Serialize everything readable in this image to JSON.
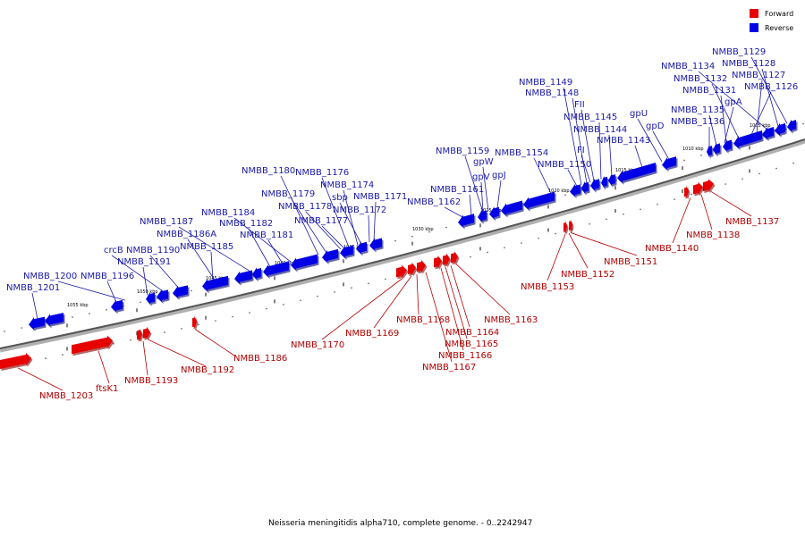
{
  "legend": {
    "forward_label": "Forward",
    "reverse_label": "Reverse",
    "forward_color": "#e60000",
    "reverse_color": "#0000e6"
  },
  "caption": "Neisseria meningitidis alpha710, complete genome. - 0..2242947",
  "ticks": [
    "1005 kbp",
    "1010 kbp",
    "1015 kbp",
    "1020 kbp",
    "1025 kbp",
    "1030 kbp",
    "1035 kbp",
    "1040 kbp",
    "1045 kbp",
    "1050 kbp",
    "1055 kbp"
  ],
  "reverse_labels": [
    "NMBB_1129",
    "NMBB_1128",
    "NMBB_1134",
    "NMBB_1127",
    "NMBB_1132",
    "NMBB_1126",
    "NMBB_1131",
    "gpA",
    "NMBB_1135",
    "NMBB_1136",
    "NMBB_1149",
    "NMBB_1148",
    "FII",
    "gpU",
    "NMBB_1145",
    "gpD",
    "NMBB_1144",
    "NMBB_1143",
    "FI",
    "NMBB_1159",
    "NMBB_1154",
    "NMBB_1150",
    "gpW",
    "gpV",
    "gpJ",
    "NMBB_1161",
    "NMBB_1162",
    "NMBB_1180",
    "NMBB_1176",
    "NMBB_1174",
    "NMBB_1179",
    "sbp",
    "NMBB_1171",
    "NMBB_1178",
    "NMBB_1172",
    "NMBB_1184",
    "NMBB_1177",
    "NMBB_1187",
    "NMBB_1182",
    "NMBB_1186A",
    "NMBB_1181",
    "NMBB_1185",
    "crcB",
    "NMBB_1190",
    "NMBB_1191",
    "NMBB_1200",
    "NMBB_1196",
    "NMBB_1201"
  ],
  "forward_labels": [
    "NMBB_1137",
    "NMBB_1138",
    "NMBB_1140",
    "NMBB_1151",
    "NMBB_1152",
    "NMBB_1153",
    "NMBB_1163",
    "NMBB_1168",
    "NMBB_1164",
    "NMBB_1169",
    "NMBB_1165",
    "NMBB_1170",
    "NMBB_1166",
    "NMBB_1167",
    "NMBB_1186",
    "NMBB_1192",
    "NMBB_1193",
    "ftsK1",
    "NMBB_1203"
  ]
}
